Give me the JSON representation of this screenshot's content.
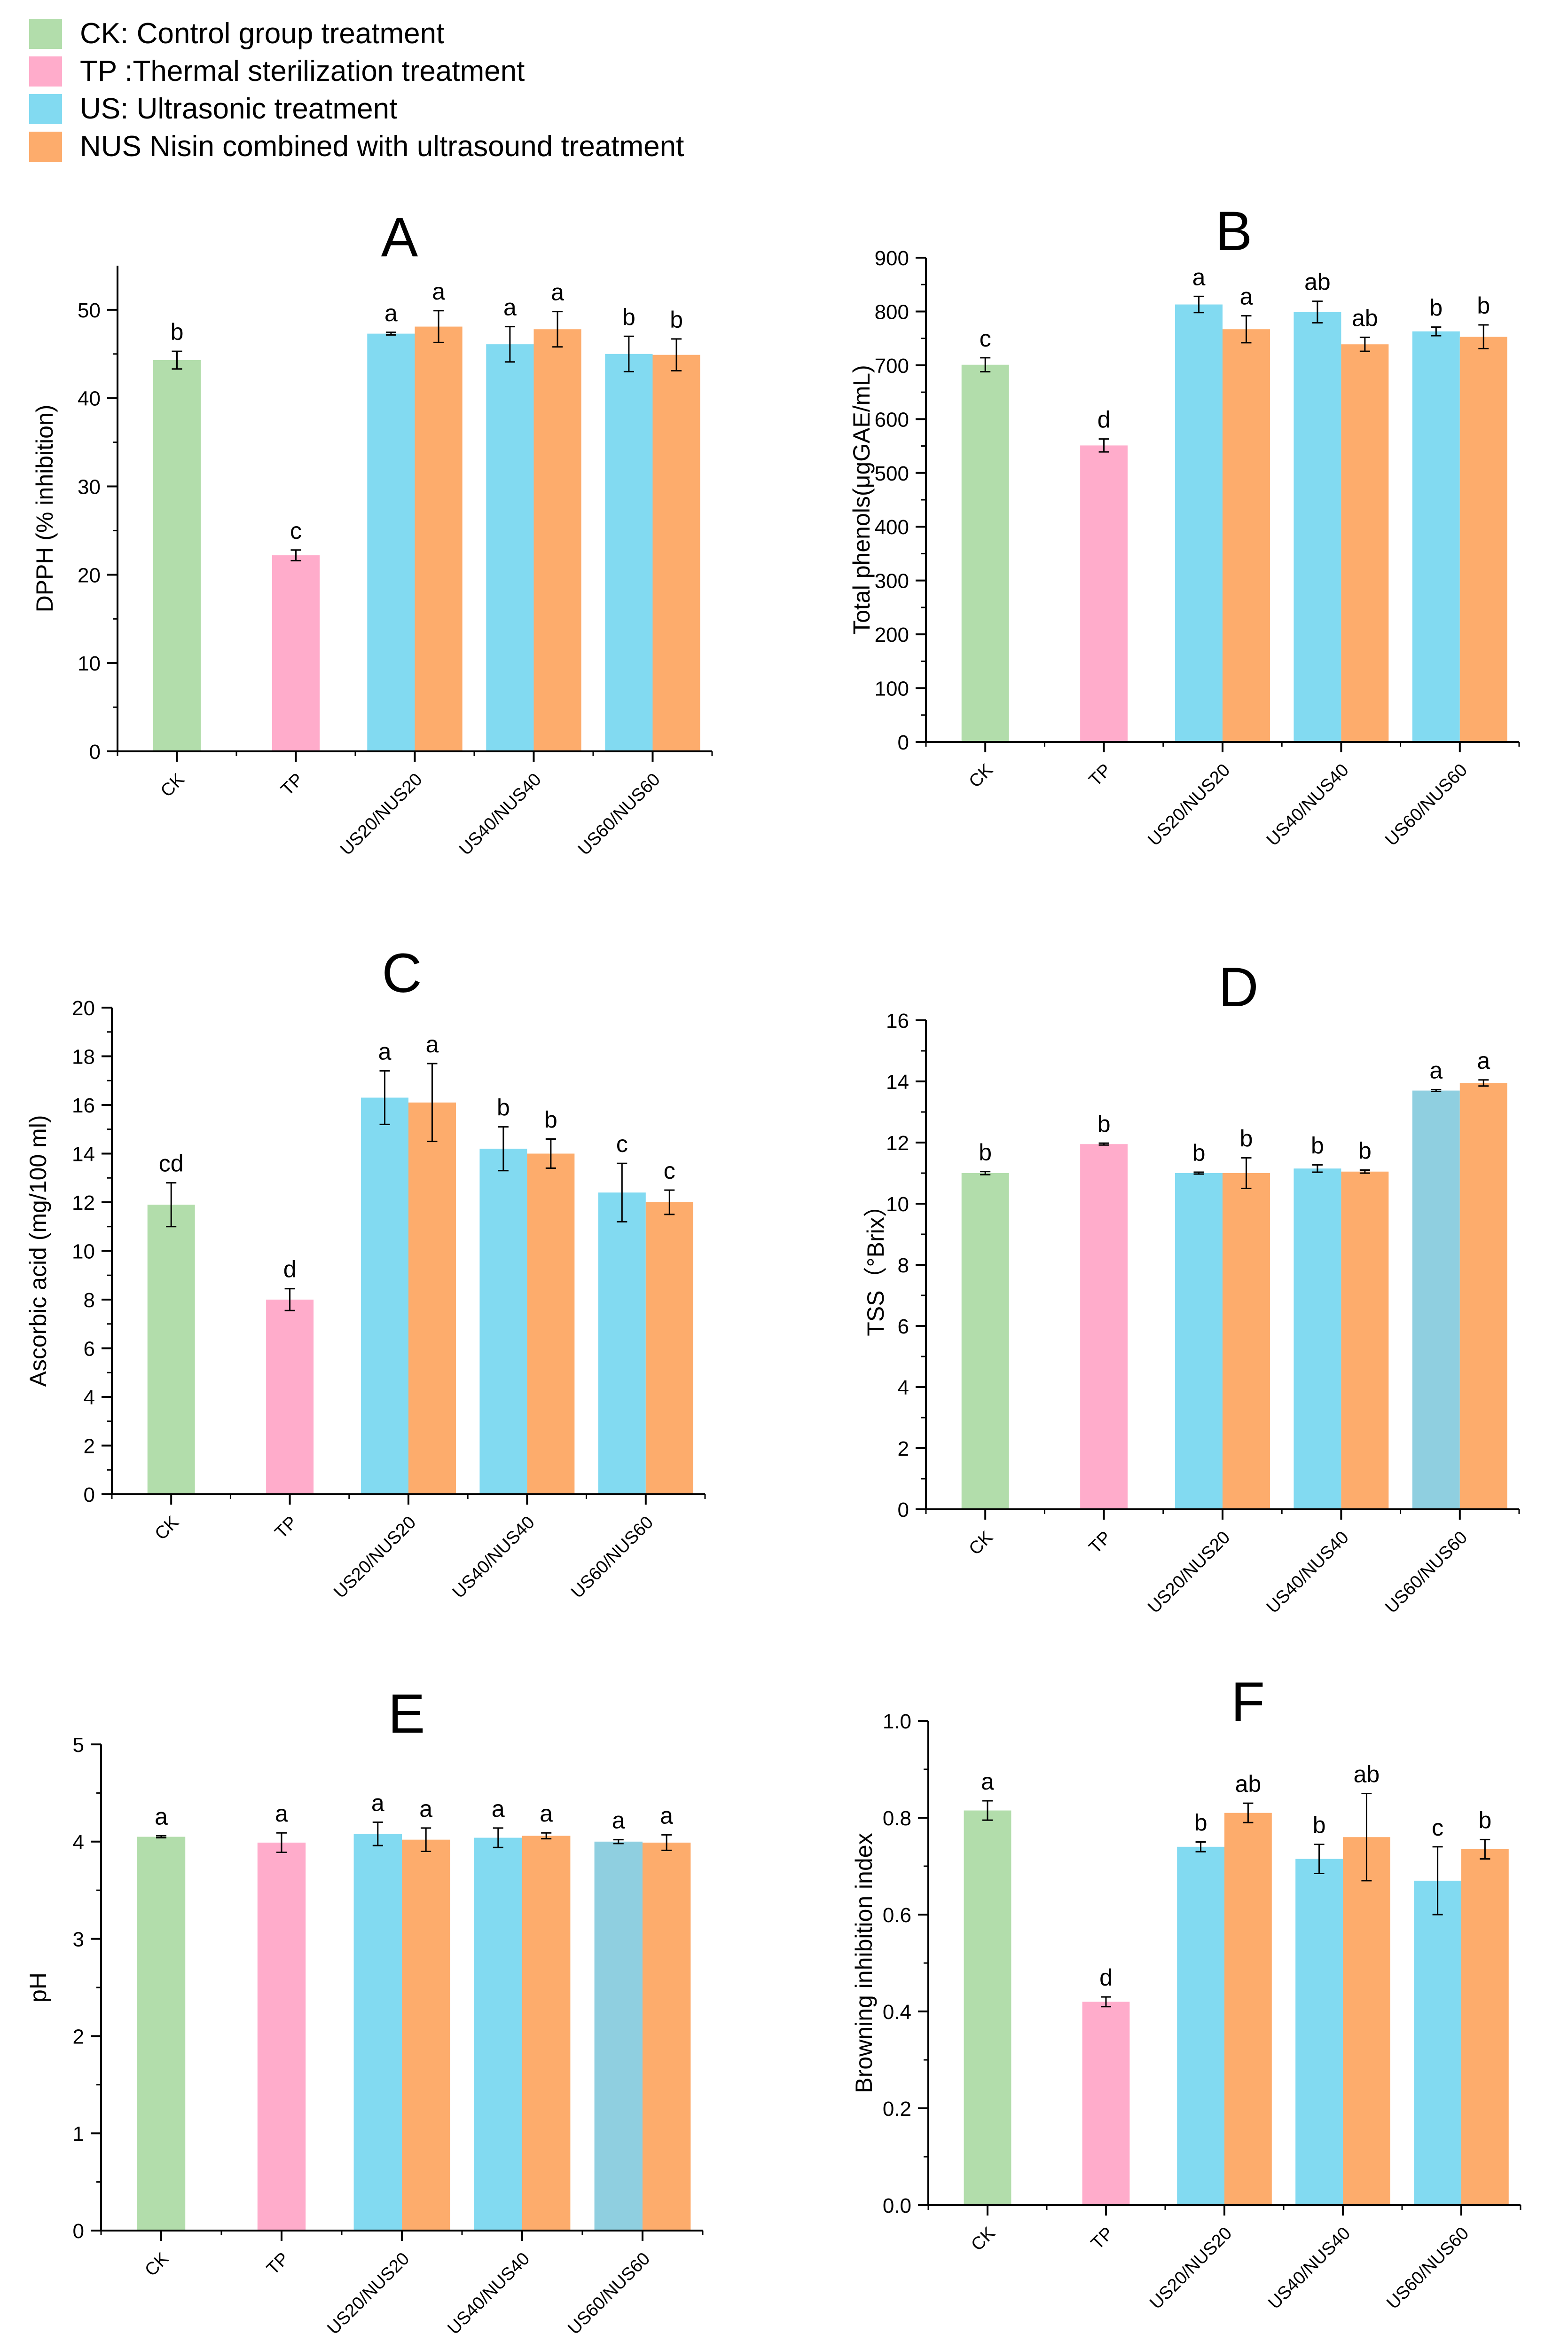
{
  "colors": {
    "CK": "#b2ddab",
    "TP": "#ffaccb",
    "US": "#82daf1",
    "NUS": "#fdac6c",
    "US_dark": "#8fcfe0",
    "axis": "#000000"
  },
  "legend": [
    {
      "key": "CK",
      "label": "CK: Control group treatment"
    },
    {
      "key": "TP",
      "label": "TP :Thermal sterilization treatment"
    },
    {
      "key": "US",
      "label": "US: Ultrasonic treatment"
    },
    {
      "key": "NUS",
      "label": "NUS Nisin combined with ultrasound treatment"
    }
  ],
  "chart_data": [
    {
      "type": "bar",
      "title": "A",
      "xlabel": "",
      "ylabel": "DPPH (% inhibition)",
      "ylim": [
        0,
        55
      ],
      "yticks": [
        0,
        10,
        20,
        30,
        40,
        50
      ],
      "categories": [
        "CK",
        "TP",
        "US20/NUS20",
        "US40/NUS40",
        "US60/NUS60"
      ],
      "bars": [
        {
          "cat": 0,
          "key": "CK",
          "value": 44.3,
          "err": 1.0,
          "letter": "b"
        },
        {
          "cat": 1,
          "key": "TP",
          "value": 22.2,
          "err": 0.6,
          "letter": "c"
        },
        {
          "cat": 2,
          "key": "US",
          "value": 47.3,
          "err": 0.15,
          "letter": "a"
        },
        {
          "cat": 2,
          "key": "NUS",
          "value": 48.1,
          "err": 1.8,
          "letter": "a"
        },
        {
          "cat": 3,
          "key": "US",
          "value": 46.1,
          "err": 2.0,
          "letter": "a"
        },
        {
          "cat": 3,
          "key": "NUS",
          "value": 47.8,
          "err": 2.0,
          "letter": "a"
        },
        {
          "cat": 4,
          "key": "US",
          "value": 45.0,
          "err": 2.0,
          "letter": "b"
        },
        {
          "cat": 4,
          "key": "NUS",
          "value": 44.9,
          "err": 1.8,
          "letter": "b"
        }
      ]
    },
    {
      "type": "bar",
      "title": "B",
      "xlabel": "",
      "ylabel": "Total phenols(μgGAE/mL)",
      "ylim": [
        0,
        900
      ],
      "yticks": [
        0,
        100,
        200,
        300,
        400,
        500,
        600,
        700,
        800,
        900
      ],
      "categories": [
        "CK",
        "TP",
        "US20/NUS20",
        "US40/NUS40",
        "US60/NUS60"
      ],
      "bars": [
        {
          "cat": 0,
          "key": "CK",
          "value": 701,
          "err": 13,
          "letter": "c"
        },
        {
          "cat": 1,
          "key": "TP",
          "value": 551,
          "err": 12,
          "letter": "d"
        },
        {
          "cat": 2,
          "key": "US",
          "value": 813,
          "err": 15,
          "letter": "a"
        },
        {
          "cat": 2,
          "key": "NUS",
          "value": 767,
          "err": 25,
          "letter": "a"
        },
        {
          "cat": 3,
          "key": "US",
          "value": 799,
          "err": 20,
          "letter": "ab"
        },
        {
          "cat": 3,
          "key": "NUS",
          "value": 739,
          "err": 13,
          "letter": "ab"
        },
        {
          "cat": 4,
          "key": "US",
          "value": 763,
          "err": 8,
          "letter": "b"
        },
        {
          "cat": 4,
          "key": "NUS",
          "value": 753,
          "err": 22,
          "letter": "b"
        }
      ]
    },
    {
      "type": "bar",
      "title": "C",
      "xlabel": "",
      "ylabel": "Ascorbic acid (mg/100 ml)",
      "ylim": [
        0,
        20
      ],
      "yticks": [
        0,
        2,
        4,
        6,
        8,
        10,
        12,
        14,
        16,
        18,
        20
      ],
      "categories": [
        "CK",
        "TP",
        "US20/NUS20",
        "US40/NUS40",
        "US60/NUS60"
      ],
      "bars": [
        {
          "cat": 0,
          "key": "CK",
          "value": 11.9,
          "err": 0.9,
          "letter": "cd"
        },
        {
          "cat": 1,
          "key": "TP",
          "value": 8.0,
          "err": 0.45,
          "letter": "d"
        },
        {
          "cat": 2,
          "key": "US",
          "value": 16.3,
          "err": 1.1,
          "letter": "a"
        },
        {
          "cat": 2,
          "key": "NUS",
          "value": 16.1,
          "err": 1.6,
          "letter": "a"
        },
        {
          "cat": 3,
          "key": "US",
          "value": 14.2,
          "err": 0.9,
          "letter": "b"
        },
        {
          "cat": 3,
          "key": "NUS",
          "value": 14.0,
          "err": 0.6,
          "letter": "b"
        },
        {
          "cat": 4,
          "key": "US",
          "value": 12.4,
          "err": 1.2,
          "letter": "c"
        },
        {
          "cat": 4,
          "key": "NUS",
          "value": 12.0,
          "err": 0.5,
          "letter": "c"
        }
      ]
    },
    {
      "type": "bar",
      "title": "D",
      "xlabel": "",
      "ylabel": "TSS（°Brix）",
      "ylim": [
        0,
        16
      ],
      "yticks": [
        0,
        2,
        4,
        6,
        8,
        10,
        12,
        14,
        16
      ],
      "categories": [
        "CK",
        "TP",
        "US20/NUS20",
        "US40/NUS40",
        "US60/NUS60"
      ],
      "bars": [
        {
          "cat": 0,
          "key": "CK",
          "value": 11.0,
          "err": 0.05,
          "letter": "b"
        },
        {
          "cat": 1,
          "key": "TP",
          "value": 11.95,
          "err": 0.03,
          "letter": "b"
        },
        {
          "cat": 2,
          "key": "US",
          "value": 11.0,
          "err": 0.03,
          "letter": "b"
        },
        {
          "cat": 2,
          "key": "NUS",
          "value": 11.0,
          "err": 0.5,
          "letter": "b"
        },
        {
          "cat": 3,
          "key": "US",
          "value": 11.15,
          "err": 0.12,
          "letter": "b"
        },
        {
          "cat": 3,
          "key": "NUS",
          "value": 11.05,
          "err": 0.05,
          "letter": "b"
        },
        {
          "cat": 4,
          "key": "US_dark",
          "value": 13.7,
          "err": 0.03,
          "letter": "a"
        },
        {
          "cat": 4,
          "key": "NUS",
          "value": 13.95,
          "err": 0.1,
          "letter": "a"
        }
      ]
    },
    {
      "type": "bar",
      "title": "E",
      "xlabel": "",
      "ylabel": "pH",
      "ylim": [
        0,
        5
      ],
      "yticks": [
        0,
        1,
        2,
        3,
        4,
        5
      ],
      "categories": [
        "CK",
        "TP",
        "US20/NUS20",
        "US40/NUS40",
        "US60/NUS60"
      ],
      "bars": [
        {
          "cat": 0,
          "key": "CK",
          "value": 4.05,
          "err": 0.01,
          "letter": "a"
        },
        {
          "cat": 1,
          "key": "TP",
          "value": 3.99,
          "err": 0.1,
          "letter": "a"
        },
        {
          "cat": 2,
          "key": "US",
          "value": 4.08,
          "err": 0.12,
          "letter": "a"
        },
        {
          "cat": 2,
          "key": "NUS",
          "value": 4.02,
          "err": 0.12,
          "letter": "a"
        },
        {
          "cat": 3,
          "key": "US",
          "value": 4.04,
          "err": 0.1,
          "letter": "a"
        },
        {
          "cat": 3,
          "key": "NUS",
          "value": 4.06,
          "err": 0.03,
          "letter": "a"
        },
        {
          "cat": 4,
          "key": "US_dark",
          "value": 4.0,
          "err": 0.02,
          "letter": "a"
        },
        {
          "cat": 4,
          "key": "NUS",
          "value": 3.99,
          "err": 0.08,
          "letter": "a"
        }
      ]
    },
    {
      "type": "bar",
      "title": "F",
      "xlabel": "",
      "ylabel": "Browning inhibition index",
      "ylim": [
        0,
        1.0
      ],
      "yticks": [
        0.0,
        0.2,
        0.4,
        0.6,
        0.8,
        1.0
      ],
      "categories": [
        "CK",
        "TP",
        "US20/NUS20",
        "US40/NUS40",
        "US60/NUS60"
      ],
      "bars": [
        {
          "cat": 0,
          "key": "CK",
          "value": 0.815,
          "err": 0.02,
          "letter": "a"
        },
        {
          "cat": 1,
          "key": "TP",
          "value": 0.42,
          "err": 0.01,
          "letter": "d"
        },
        {
          "cat": 2,
          "key": "US",
          "value": 0.74,
          "err": 0.01,
          "letter": "b"
        },
        {
          "cat": 2,
          "key": "NUS",
          "value": 0.81,
          "err": 0.02,
          "letter": "ab"
        },
        {
          "cat": 3,
          "key": "US",
          "value": 0.715,
          "err": 0.03,
          "letter": "b"
        },
        {
          "cat": 3,
          "key": "NUS",
          "value": 0.76,
          "err": 0.09,
          "letter": "ab"
        },
        {
          "cat": 4,
          "key": "US",
          "value": 0.67,
          "err": 0.07,
          "letter": "c"
        },
        {
          "cat": 4,
          "key": "NUS",
          "value": 0.735,
          "err": 0.02,
          "letter": "b"
        }
      ]
    }
  ]
}
